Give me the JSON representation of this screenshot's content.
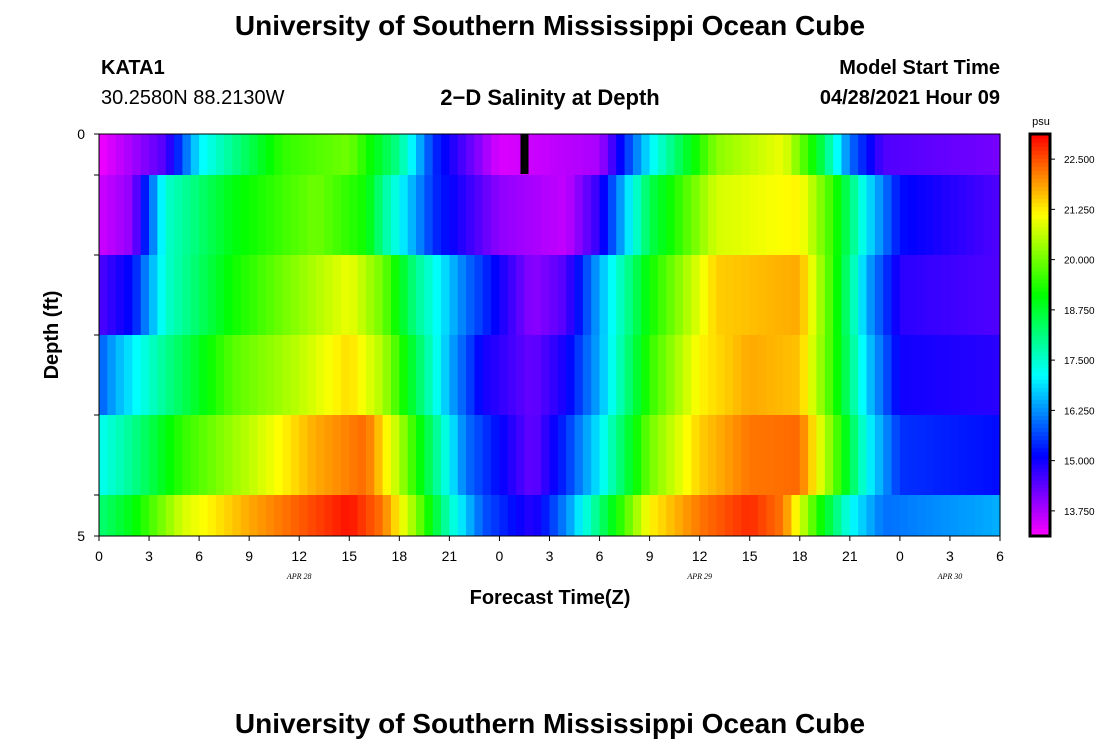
{
  "header": {
    "title_top": "University of Southern Mississippi Ocean Cube",
    "station_id": "KATA1",
    "station_coords": "30.2580N  88.2130W",
    "plot_title": "2−D Salinity at Depth",
    "model_start_label": "Model Start Time",
    "model_start_value": "04/28/2021 Hour 09",
    "title_bottom": "University of Southern Mississippi Ocean Cube"
  },
  "colors": {
    "accent_marker": "#000000",
    "frame": "#000000"
  },
  "chart_data": {
    "type": "heatmap",
    "title": "2−D Salinity at Depth",
    "xlabel": "Forecast Time(Z)",
    "ylabel": "Depth (ft)",
    "x_ticks": [
      "0",
      "3",
      "6",
      "9",
      "12",
      "15",
      "18",
      "21",
      "0",
      "3",
      "6",
      "9",
      "12",
      "15",
      "18",
      "21",
      "0",
      "3",
      "6"
    ],
    "date_labels": [
      {
        "text": "APR  28",
        "hour": 12
      },
      {
        "text": "APR  29",
        "hour": 36
      },
      {
        "text": "APR  30",
        "hour": 51
      }
    ],
    "x_range_hours": [
      0,
      54
    ],
    "y_ticks": [
      "0",
      "5"
    ],
    "y_range_ft": [
      0,
      5
    ],
    "depth_rows_ft": [
      0,
      1,
      2,
      3,
      4,
      5
    ],
    "current_time_hour": 25.5,
    "colorbar": {
      "unit": "psu",
      "range": [
        13.125,
        23.125
      ],
      "tick_values": [
        13.75,
        15.0,
        16.25,
        17.5,
        18.75,
        20.0,
        21.25,
        22.5
      ],
      "tick_labels": [
        "13.750",
        "15.000",
        "16.250",
        "17.500",
        "18.750",
        "20.000",
        "21.250",
        "22.500"
      ]
    },
    "salinity_anchors": [
      {
        "depth_ft": 0,
        "hours": [
          0,
          4,
          6,
          11,
          15,
          18,
          20,
          24,
          30,
          33,
          37,
          41,
          43,
          45,
          47,
          54
        ],
        "psu": [
          13.2,
          14.5,
          17,
          19.5,
          20,
          18,
          15.5,
          13.4,
          13.8,
          17,
          20.2,
          21,
          19,
          16,
          14.5,
          14.2
        ]
      },
      {
        "depth_ft": 1,
        "hours": [
          0,
          2,
          4,
          8,
          13,
          16,
          17,
          20,
          24,
          28,
          30,
          33,
          37,
          42,
          44,
          46,
          48,
          54
        ],
        "psu": [
          13.5,
          14,
          17.5,
          19,
          20,
          19.2,
          18,
          15.5,
          14,
          13.6,
          14.8,
          18.5,
          20.8,
          21.2,
          19.5,
          17,
          15.2,
          14.5
        ]
      },
      {
        "depth_ft": 2,
        "hours": [
          0,
          2,
          4,
          8,
          11,
          15,
          17,
          19,
          22,
          26,
          28,
          30,
          33,
          37,
          42,
          44,
          46,
          48,
          54
        ],
        "psu": [
          14.5,
          15.2,
          17.5,
          19.2,
          20,
          21,
          20,
          18,
          16,
          14,
          14.5,
          16.5,
          19.2,
          21.5,
          21.8,
          19.5,
          16.5,
          14.8,
          14.5
        ]
      },
      {
        "depth_ft": 3,
        "hours": [
          0,
          1,
          4,
          8,
          12,
          15,
          17,
          19,
          21,
          23,
          26,
          28,
          30,
          33,
          36,
          39,
          42,
          44,
          46,
          48,
          54
        ],
        "psu": [
          15.8,
          16.5,
          18,
          19.8,
          20.6,
          21.4,
          20.5,
          18.5,
          16.5,
          15,
          14.3,
          15,
          16.5,
          19.5,
          21.2,
          21.8,
          21.6,
          19.5,
          16.8,
          15,
          14.8
        ]
      },
      {
        "depth_ft": 4,
        "hours": [
          0,
          2,
          5,
          9,
          13,
          16,
          18,
          20,
          22,
          26,
          28,
          30,
          33,
          36,
          39,
          42,
          44,
          46,
          48,
          54
        ],
        "psu": [
          17.2,
          18,
          19.5,
          20.6,
          21.8,
          22.3,
          20.5,
          18.2,
          16,
          14.3,
          15.5,
          17,
          20,
          21.5,
          22.2,
          22.3,
          20,
          17.2,
          15.5,
          15.2
        ]
      },
      {
        "depth_ft": 5,
        "hours": [
          0,
          2,
          5,
          9,
          13,
          15,
          17,
          19,
          21,
          23,
          26,
          28,
          30,
          33,
          36,
          39,
          41,
          43,
          45,
          47,
          54
        ],
        "psu": [
          18.2,
          19,
          20.8,
          21.8,
          22.6,
          23.0,
          22.2,
          20.2,
          17.6,
          15.8,
          14.8,
          16.2,
          18.2,
          21.2,
          22.2,
          22.8,
          22.2,
          19.5,
          17.2,
          16,
          16.5
        ]
      }
    ]
  }
}
